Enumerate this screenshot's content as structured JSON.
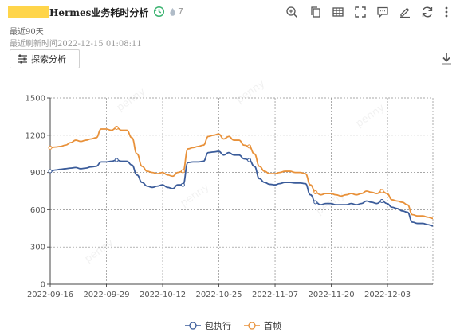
{
  "header": {
    "title": "Hermes业务耗时分析",
    "count": "7"
  },
  "meta": {
    "range": "最近90天",
    "refresh": "最近刷新时间2022-12-15 01:08:11"
  },
  "toolbar": {
    "explore_label": "探索分析",
    "icons": [
      "zoom-icon",
      "copy-icon",
      "table-icon",
      "fullscreen-icon",
      "comment-icon",
      "edit-icon",
      "refresh-icon",
      "more-icon"
    ]
  },
  "colors": {
    "series1": "#3b5c9a",
    "series2": "#e8913a",
    "accent_green": "#3cb371"
  },
  "watermark": "penny",
  "chart_data": {
    "type": "line",
    "xlabel": "",
    "ylabel": "",
    "ylim": [
      0,
      1500
    ],
    "yticks": [
      0,
      300,
      600,
      900,
      1200,
      1500
    ],
    "xticks": [
      "2022-09-16",
      "2022-09-29",
      "2022-10-12",
      "2022-10-25",
      "2022-11-07",
      "2022-11-20",
      "2022-12-03"
    ],
    "grid": true,
    "legend_position": "bottom",
    "series": [
      {
        "name": "包执行",
        "values": [
          910,
          920,
          925,
          930,
          935,
          940,
          930,
          935,
          945,
          950,
          985,
          985,
          990,
          1000,
          990,
          990,
          960,
          880,
          820,
          790,
          780,
          790,
          800,
          780,
          770,
          800,
          800,
          980,
          985,
          985,
          990,
          1060,
          1065,
          1070,
          1040,
          1060,
          1040,
          1040,
          1010,
          1000,
          950,
          850,
          820,
          805,
          800,
          810,
          820,
          820,
          815,
          815,
          810,
          720,
          660,
          640,
          650,
          650,
          640,
          640,
          640,
          650,
          640,
          650,
          670,
          660,
          650,
          670,
          650,
          620,
          610,
          590,
          580,
          500,
          490,
          490,
          480,
          470
        ]
      },
      {
        "name": "首帧",
        "values": [
          1100,
          1105,
          1110,
          1120,
          1140,
          1160,
          1150,
          1160,
          1170,
          1180,
          1250,
          1250,
          1240,
          1260,
          1240,
          1240,
          1180,
          1050,
          950,
          910,
          900,
          890,
          900,
          880,
          870,
          900,
          910,
          1090,
          1100,
          1110,
          1120,
          1190,
          1200,
          1210,
          1170,
          1190,
          1160,
          1160,
          1120,
          1110,
          1050,
          950,
          910,
          890,
          890,
          900,
          910,
          910,
          900,
          900,
          890,
          800,
          740,
          720,
          730,
          730,
          720,
          710,
          720,
          730,
          720,
          730,
          750,
          740,
          730,
          750,
          730,
          680,
          670,
          660,
          640,
          560,
          550,
          550,
          540,
          530
        ]
      }
    ]
  }
}
